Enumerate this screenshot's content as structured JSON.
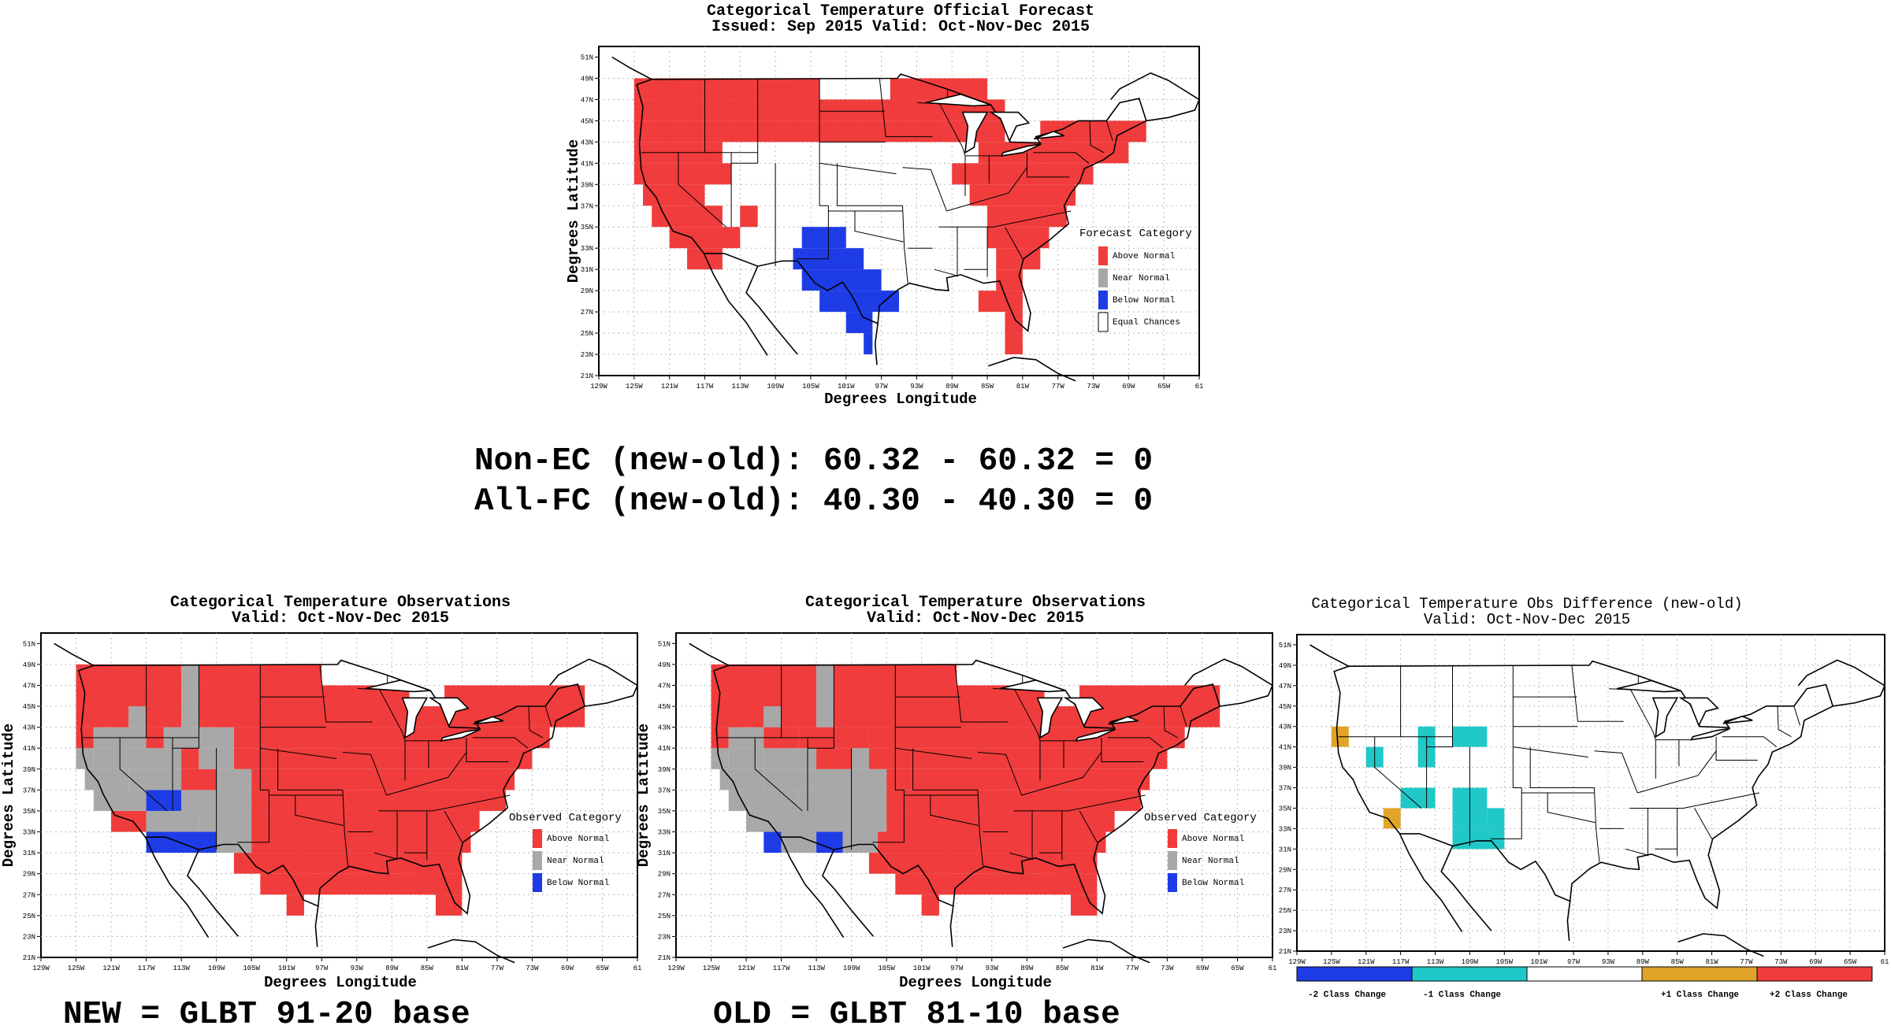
{
  "forecast": {
    "title": "Categorical Temperature Official Forecast",
    "subtitle": "Issued: Sep 2015 Valid: Oct-Nov-Dec 2015",
    "ylabel": "Degrees Latitude",
    "xlabel": "Degrees Longitude",
    "legend_title": "Forecast Category",
    "legend": [
      "Above Normal",
      "Near Normal",
      "Below Normal",
      "Equal Chances"
    ]
  },
  "obs_new": {
    "title": "Categorical Temperature Observations",
    "subtitle": "Valid: Oct-Nov-Dec 2015",
    "ylabel": "Degrees Latitude",
    "xlabel": "Degrees Longitude",
    "legend_title": "Observed Category",
    "legend": [
      "Above Normal",
      "Near Normal",
      "Below Normal"
    ]
  },
  "obs_old": {
    "title": "Categorical Temperature Observations",
    "subtitle": "Valid: Oct-Nov-Dec 2015",
    "ylabel": "Degrees Latitude",
    "xlabel": "Degrees Longitude",
    "legend_title": "Observed Category",
    "legend": [
      "Above Normal",
      "Near Normal",
      "Below Normal"
    ]
  },
  "diff": {
    "title": "Categorical Temperature Obs Difference (new-old)",
    "subtitle": "Valid: Oct-Nov-Dec 2015",
    "colorbar": [
      "-2 Class Change",
      "-1 Class Change",
      "+1 Class Change",
      "+2 Class Change"
    ]
  },
  "axes": {
    "lat_ticks": [
      "51N",
      "49N",
      "47N",
      "45N",
      "43N",
      "41N",
      "39N",
      "37N",
      "35N",
      "33N",
      "31N",
      "29N",
      "27N",
      "25N",
      "23N",
      "21N"
    ],
    "lon_ticks": [
      "129W",
      "125W",
      "121W",
      "117W",
      "113W",
      "109W",
      "105W",
      "101W",
      "97W",
      "93W",
      "89W",
      "85W",
      "81W",
      "77W",
      "73W",
      "69W",
      "65W",
      "61"
    ]
  },
  "scores": {
    "non_ec": "Non-EC (new-old): 60.32 - 60.32 = 0",
    "all_fc": "All-FC (new-old): 40.30 - 40.30 = 0"
  },
  "labels": {
    "new": "NEW = GLBT 91-20 base",
    "old": "OLD = GLBT 81-10 base"
  },
  "colors": {
    "above": "#f03c3c",
    "near": "#a8a8a8",
    "below": "#1e3ce6",
    "equal": "#ffffff",
    "minus2": "#1e3ce6",
    "minus1": "#20c8c8",
    "plus1": "#e0a428",
    "plus2": "#f03c3c"
  }
}
